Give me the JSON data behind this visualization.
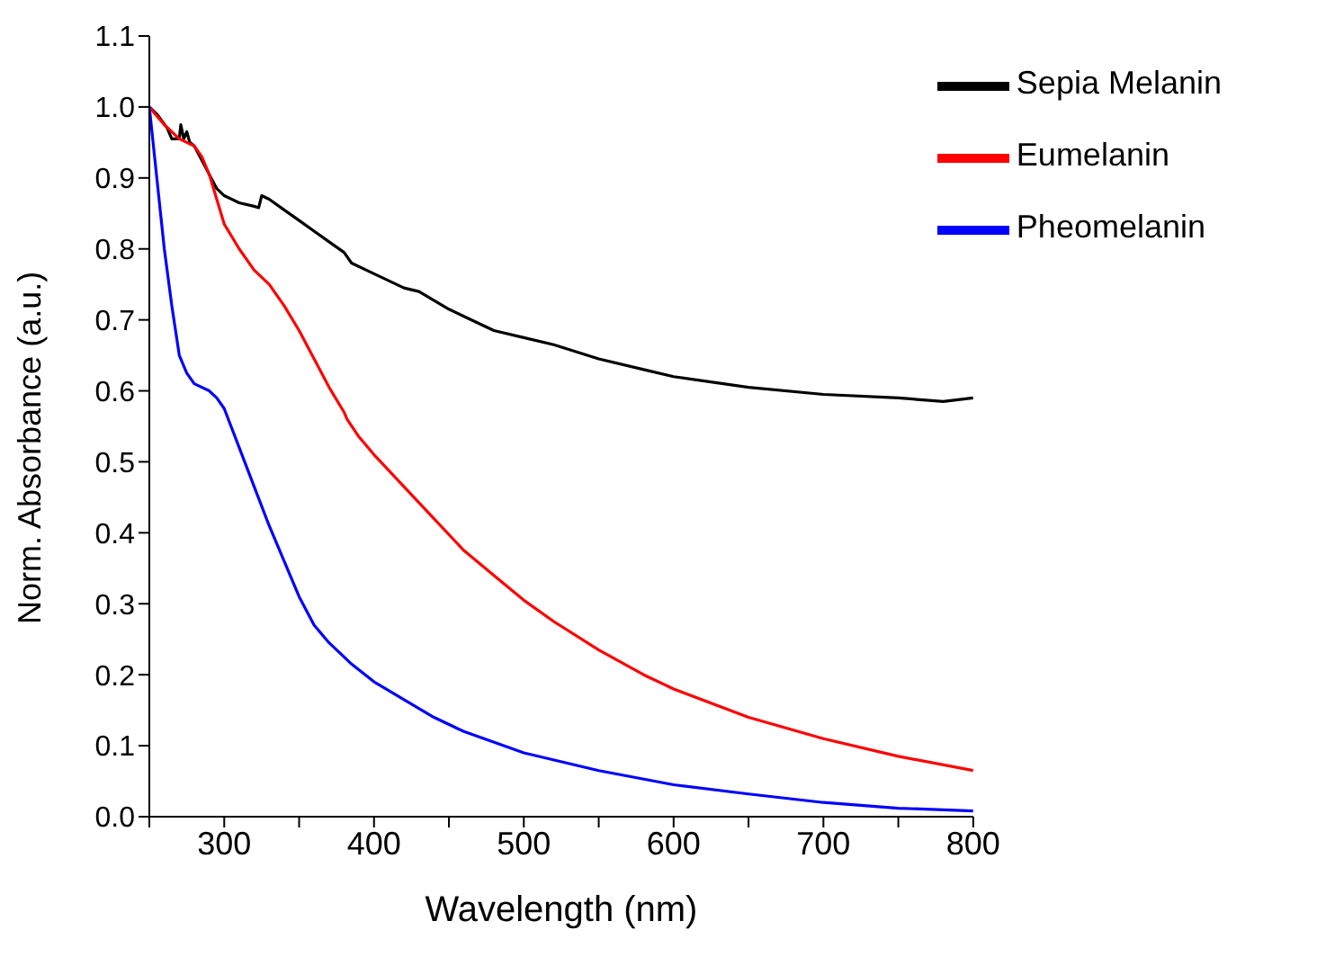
{
  "chart_data": {
    "type": "line",
    "xlabel": "Wavelength (nm)",
    "ylabel": "Norm. Absorbance (a.u.)",
    "xlim": [
      250,
      800
    ],
    "ylim": [
      0,
      1.1
    ],
    "xticks": [
      {
        "value": 250,
        "label": null
      },
      300,
      {
        "value": 350,
        "label": null
      },
      400,
      {
        "value": 450,
        "label": null
      },
      500,
      {
        "value": 550,
        "label": null
      },
      600,
      {
        "value": 650,
        "label": null
      },
      700,
      {
        "value": 750,
        "label": null
      },
      800
    ],
    "yticks": [
      {
        "value": 0,
        "label": "0.0"
      },
      0.1,
      0.2,
      0.3,
      0.4,
      0.5,
      0.6,
      0.7,
      0.8,
      0.9,
      {
        "value": 1,
        "label": "1.0"
      },
      1.1
    ],
    "grid": false,
    "legend": "top right",
    "marker": "none",
    "line_style": "solid",
    "series": [
      {
        "name": "Sepia Melanin",
        "color": "#000000",
        "x": [
          250,
          255,
          262,
          265,
          270,
          271,
          273,
          275,
          277,
          280,
          290,
          295,
          300,
          310,
          320,
          323,
          325,
          330,
          340,
          350,
          360,
          370,
          380,
          385,
          400,
          420,
          430,
          450,
          460,
          480,
          500,
          520,
          550,
          580,
          600,
          650,
          700,
          750,
          780,
          800
        ],
        "values": [
          1.0,
          0.99,
          0.97,
          0.955,
          0.955,
          0.975,
          0.955,
          0.965,
          0.95,
          0.945,
          0.905,
          0.885,
          0.875,
          0.865,
          0.86,
          0.858,
          0.875,
          0.87,
          0.855,
          0.84,
          0.825,
          0.81,
          0.795,
          0.78,
          0.765,
          0.745,
          0.74,
          0.715,
          0.705,
          0.685,
          0.675,
          0.665,
          0.645,
          0.63,
          0.62,
          0.605,
          0.595,
          0.59,
          0.585,
          0.59
        ]
      },
      {
        "name": "Eumelanin",
        "color": "#ff0000",
        "x": [
          250,
          260,
          270,
          280,
          285,
          290,
          295,
          300,
          310,
          320,
          330,
          340,
          350,
          360,
          370,
          380,
          382,
          390,
          400,
          420,
          440,
          460,
          480,
          500,
          520,
          550,
          580,
          600,
          650,
          700,
          750,
          800
        ],
        "values": [
          1.0,
          0.975,
          0.955,
          0.945,
          0.93,
          0.905,
          0.87,
          0.835,
          0.8,
          0.77,
          0.75,
          0.72,
          0.685,
          0.645,
          0.605,
          0.57,
          0.56,
          0.535,
          0.51,
          0.465,
          0.42,
          0.375,
          0.34,
          0.305,
          0.275,
          0.235,
          0.2,
          0.18,
          0.14,
          0.11,
          0.085,
          0.065
        ]
      },
      {
        "name": "Pheomelanin",
        "color": "#0000ff",
        "x": [
          250,
          255,
          260,
          265,
          270,
          275,
          280,
          290,
          295,
          300,
          310,
          320,
          330,
          340,
          350,
          360,
          370,
          380,
          385,
          400,
          420,
          440,
          460,
          500,
          550,
          600,
          650,
          700,
          750,
          800
        ],
        "values": [
          1.0,
          0.9,
          0.8,
          0.72,
          0.65,
          0.625,
          0.61,
          0.6,
          0.59,
          0.575,
          0.52,
          0.465,
          0.41,
          0.36,
          0.31,
          0.27,
          0.245,
          0.225,
          0.215,
          0.19,
          0.165,
          0.14,
          0.12,
          0.09,
          0.065,
          0.045,
          0.032,
          0.02,
          0.012,
          0.008
        ]
      }
    ]
  }
}
